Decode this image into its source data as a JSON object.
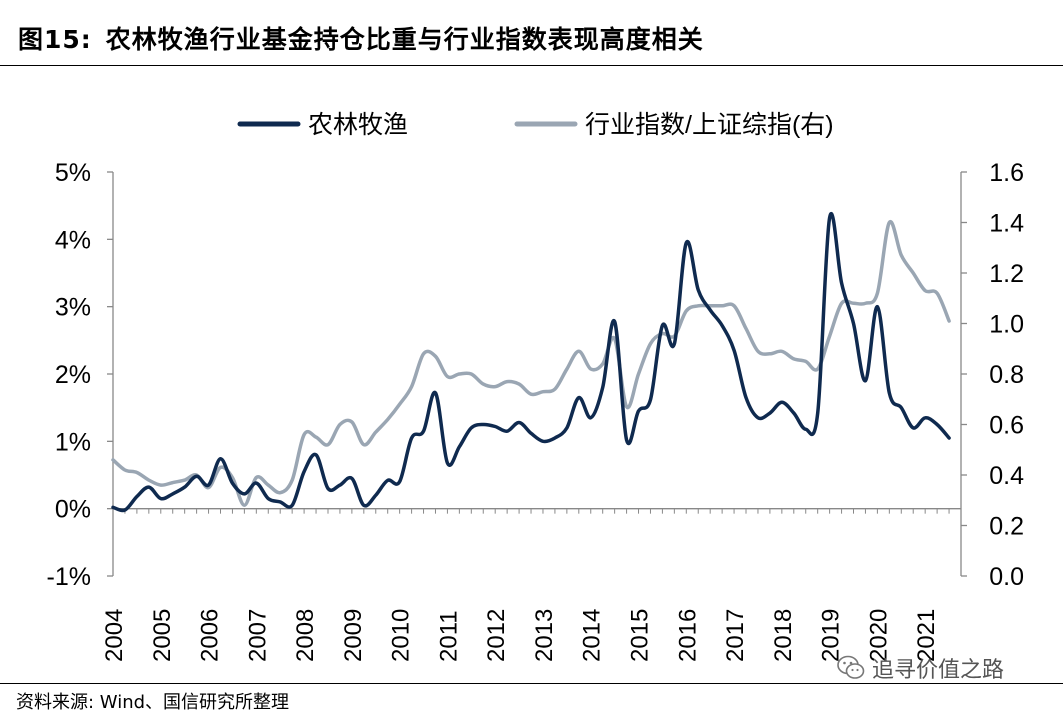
{
  "header": {
    "figure_number": "图15:",
    "title": "农林牧渔行业基金持仓比重与行业指数表现高度相关"
  },
  "footer": {
    "source": "资料来源: Wind、国信研究所整理",
    "watermark": "追寻价值之路",
    "watermark_icon": "wechat-icon"
  },
  "chart_data": {
    "type": "line",
    "legend_position": "top-center",
    "grid": false,
    "x_tick_labels": [
      "2004",
      "2005",
      "2006",
      "2007",
      "2008",
      "2009",
      "2010",
      "2011",
      "2012",
      "2013",
      "2014",
      "2015",
      "2016",
      "2017",
      "2018",
      "2019",
      "2020",
      "2021"
    ],
    "x_range": [
      2004.0,
      2021.75
    ],
    "y_left": {
      "min": -1,
      "max": 5,
      "ticks": [
        -1,
        0,
        1,
        2,
        3,
        4,
        5
      ],
      "tick_labels": [
        "-1%",
        "0%",
        "1%",
        "2%",
        "3%",
        "4%",
        "5%"
      ]
    },
    "y_right": {
      "min": 0.0,
      "max": 1.6,
      "ticks": [
        0.0,
        0.2,
        0.4,
        0.6,
        0.8,
        1.0,
        1.2,
        1.4,
        1.6
      ],
      "tick_labels": [
        "0.0",
        "0.2",
        "0.4",
        "0.6",
        "0.8",
        "1.0",
        "1.2",
        "1.4",
        "1.6"
      ]
    },
    "series": [
      {
        "name": "农林牧渔",
        "axis": "left",
        "color": "#0f2a4f",
        "points": [
          [
            2004.0,
            0.02
          ],
          [
            2004.25,
            -0.02
          ],
          [
            2004.5,
            0.18
          ],
          [
            2004.75,
            0.32
          ],
          [
            2005.0,
            0.15
          ],
          [
            2005.25,
            0.22
          ],
          [
            2005.5,
            0.32
          ],
          [
            2005.75,
            0.48
          ],
          [
            2006.0,
            0.35
          ],
          [
            2006.25,
            0.74
          ],
          [
            2006.5,
            0.38
          ],
          [
            2006.75,
            0.22
          ],
          [
            2007.0,
            0.38
          ],
          [
            2007.25,
            0.15
          ],
          [
            2007.5,
            0.1
          ],
          [
            2007.75,
            0.05
          ],
          [
            2008.0,
            0.55
          ],
          [
            2008.25,
            0.8
          ],
          [
            2008.5,
            0.3
          ],
          [
            2008.75,
            0.35
          ],
          [
            2009.0,
            0.45
          ],
          [
            2009.25,
            0.05
          ],
          [
            2009.5,
            0.2
          ],
          [
            2009.75,
            0.42
          ],
          [
            2010.0,
            0.4
          ],
          [
            2010.25,
            1.05
          ],
          [
            2010.5,
            1.15
          ],
          [
            2010.75,
            1.72
          ],
          [
            2011.0,
            0.68
          ],
          [
            2011.25,
            0.92
          ],
          [
            2011.5,
            1.2
          ],
          [
            2011.75,
            1.25
          ],
          [
            2012.0,
            1.22
          ],
          [
            2012.25,
            1.15
          ],
          [
            2012.5,
            1.28
          ],
          [
            2012.75,
            1.12
          ],
          [
            2013.0,
            1.0
          ],
          [
            2013.25,
            1.05
          ],
          [
            2013.5,
            1.2
          ],
          [
            2013.75,
            1.65
          ],
          [
            2014.0,
            1.35
          ],
          [
            2014.25,
            1.8
          ],
          [
            2014.5,
            2.78
          ],
          [
            2014.75,
            1.02
          ],
          [
            2015.0,
            1.45
          ],
          [
            2015.25,
            1.62
          ],
          [
            2015.5,
            2.72
          ],
          [
            2015.75,
            2.45
          ],
          [
            2016.0,
            3.95
          ],
          [
            2016.25,
            3.25
          ],
          [
            2016.5,
            2.95
          ],
          [
            2016.75,
            2.72
          ],
          [
            2017.0,
            2.35
          ],
          [
            2017.25,
            1.65
          ],
          [
            2017.5,
            1.35
          ],
          [
            2017.75,
            1.42
          ],
          [
            2018.0,
            1.58
          ],
          [
            2018.25,
            1.42
          ],
          [
            2018.5,
            1.18
          ],
          [
            2018.75,
            1.42
          ],
          [
            2019.0,
            4.32
          ],
          [
            2019.25,
            3.35
          ],
          [
            2019.5,
            2.75
          ],
          [
            2019.75,
            1.9
          ],
          [
            2020.0,
            3.0
          ],
          [
            2020.25,
            1.72
          ],
          [
            2020.5,
            1.5
          ],
          [
            2020.75,
            1.2
          ],
          [
            2021.0,
            1.35
          ],
          [
            2021.25,
            1.25
          ],
          [
            2021.5,
            1.05
          ]
        ]
      },
      {
        "name": "行业指数/上证综指(右)",
        "axis": "right",
        "color": "#9aa6b3",
        "points": [
          [
            2004.0,
            0.46
          ],
          [
            2004.25,
            0.42
          ],
          [
            2004.5,
            0.41
          ],
          [
            2004.75,
            0.38
          ],
          [
            2005.0,
            0.36
          ],
          [
            2005.25,
            0.37
          ],
          [
            2005.5,
            0.38
          ],
          [
            2005.75,
            0.4
          ],
          [
            2006.0,
            0.35
          ],
          [
            2006.25,
            0.43
          ],
          [
            2006.5,
            0.39
          ],
          [
            2006.75,
            0.28
          ],
          [
            2007.0,
            0.39
          ],
          [
            2007.25,
            0.36
          ],
          [
            2007.5,
            0.33
          ],
          [
            2007.75,
            0.38
          ],
          [
            2008.0,
            0.56
          ],
          [
            2008.25,
            0.55
          ],
          [
            2008.5,
            0.52
          ],
          [
            2008.75,
            0.6
          ],
          [
            2009.0,
            0.61
          ],
          [
            2009.25,
            0.52
          ],
          [
            2009.5,
            0.57
          ],
          [
            2009.75,
            0.62
          ],
          [
            2010.0,
            0.68
          ],
          [
            2010.25,
            0.75
          ],
          [
            2010.5,
            0.88
          ],
          [
            2010.75,
            0.87
          ],
          [
            2011.0,
            0.79
          ],
          [
            2011.25,
            0.8
          ],
          [
            2011.5,
            0.8
          ],
          [
            2011.75,
            0.76
          ],
          [
            2012.0,
            0.75
          ],
          [
            2012.25,
            0.77
          ],
          [
            2012.5,
            0.76
          ],
          [
            2012.75,
            0.72
          ],
          [
            2013.0,
            0.73
          ],
          [
            2013.25,
            0.74
          ],
          [
            2013.5,
            0.82
          ],
          [
            2013.75,
            0.89
          ],
          [
            2014.0,
            0.82
          ],
          [
            2014.25,
            0.84
          ],
          [
            2014.5,
            0.94
          ],
          [
            2014.75,
            0.67
          ],
          [
            2015.0,
            0.8
          ],
          [
            2015.25,
            0.92
          ],
          [
            2015.5,
            0.96
          ],
          [
            2015.75,
            0.95
          ],
          [
            2016.0,
            1.05
          ],
          [
            2016.25,
            1.07
          ],
          [
            2016.5,
            1.07
          ],
          [
            2016.75,
            1.07
          ],
          [
            2017.0,
            1.07
          ],
          [
            2017.25,
            0.98
          ],
          [
            2017.5,
            0.89
          ],
          [
            2017.75,
            0.88
          ],
          [
            2018.0,
            0.89
          ],
          [
            2018.25,
            0.86
          ],
          [
            2018.5,
            0.85
          ],
          [
            2018.75,
            0.82
          ],
          [
            2019.0,
            0.95
          ],
          [
            2019.25,
            1.08
          ],
          [
            2019.5,
            1.08
          ],
          [
            2019.75,
            1.08
          ],
          [
            2020.0,
            1.12
          ],
          [
            2020.25,
            1.4
          ],
          [
            2020.5,
            1.27
          ],
          [
            2020.75,
            1.2
          ],
          [
            2021.0,
            1.13
          ],
          [
            2021.25,
            1.12
          ],
          [
            2021.5,
            1.01
          ]
        ]
      }
    ]
  }
}
